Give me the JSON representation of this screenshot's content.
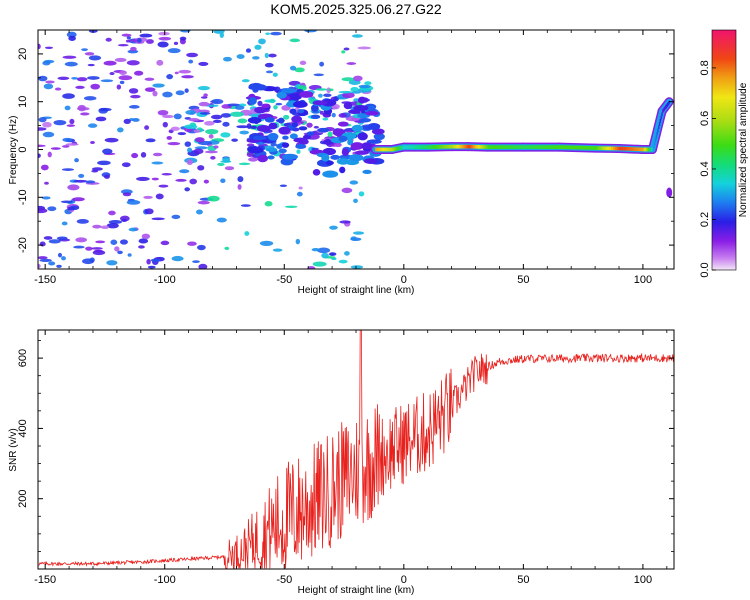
{
  "title": "KOM5.2025.325.06.27.G22",
  "chart_data": [
    {
      "type": "heatmap",
      "name": "spectrogram",
      "xlabel": "Height of straight line (km)",
      "ylabel": "Frequency (Hz)",
      "xlim": [
        -153,
        113
      ],
      "ylim": [
        -25,
        25
      ],
      "xticks": [
        -150,
        -100,
        -50,
        0,
        50,
        100
      ],
      "yticks": [
        -20,
        -10,
        0,
        10,
        20
      ],
      "colorbar": {
        "label": "Normalized spectral amplitude",
        "range": [
          0,
          0.95
        ],
        "ticks": [
          0.0,
          0.2,
          0.4,
          0.6,
          0.8
        ],
        "tick_labels": [
          "0.0",
          "0.2",
          "0.4",
          "0.6",
          "0.8"
        ]
      },
      "dominant_signal": [
        {
          "x": -12,
          "freq": 0.0,
          "amp": 0.75
        },
        {
          "x": -5,
          "freq": 0.0,
          "amp": 0.6
        },
        {
          "x": 0,
          "freq": 0.5,
          "amp": 0.35
        },
        {
          "x": 10,
          "freq": 0.5,
          "amp": 0.45
        },
        {
          "x": 20,
          "freq": 0.6,
          "amp": 0.6
        },
        {
          "x": 27,
          "freq": 0.6,
          "amp": 0.85
        },
        {
          "x": 35,
          "freq": 0.5,
          "amp": 0.5
        },
        {
          "x": 50,
          "freq": 0.5,
          "amp": 0.45
        },
        {
          "x": 65,
          "freq": 0.5,
          "amp": 0.5
        },
        {
          "x": 80,
          "freq": 0.3,
          "amp": 0.5
        },
        {
          "x": 90,
          "freq": 0.2,
          "amp": 0.85
        },
        {
          "x": 100,
          "freq": 0.0,
          "amp": 0.75
        },
        {
          "x": 104,
          "freq": 0.0,
          "amp": 0.3
        },
        {
          "x": 108,
          "freq": 8.0,
          "amp": 0.15
        },
        {
          "x": 111,
          "freq": 10.0,
          "amp": 0.2
        }
      ],
      "scattered_region_x": [
        -153,
        -15
      ],
      "scattered_amp_range": [
        0.05,
        0.35
      ]
    },
    {
      "type": "line",
      "name": "snr",
      "xlabel": "Height of straight line (km)",
      "ylabel": "SNR (v/v)",
      "xlim": [
        -153,
        113
      ],
      "ylim": [
        0,
        680
      ],
      "xticks": [
        -150,
        -100,
        -50,
        0,
        50,
        100
      ],
      "yticks": [
        200,
        400,
        600
      ],
      "color": "#e8211d",
      "trend": [
        {
          "x": -153,
          "snr": 15
        },
        {
          "x": -130,
          "snr": 15
        },
        {
          "x": -110,
          "snr": 20
        },
        {
          "x": -90,
          "snr": 28
        },
        {
          "x": -75,
          "snr": 35
        },
        {
          "x": -68,
          "snr": 50
        },
        {
          "x": -60,
          "snr": 90
        },
        {
          "x": -50,
          "snr": 140
        },
        {
          "x": -40,
          "snr": 180
        },
        {
          "x": -30,
          "snr": 230
        },
        {
          "x": -20,
          "snr": 280
        },
        {
          "x": -10,
          "snr": 320
        },
        {
          "x": 0,
          "snr": 360
        },
        {
          "x": 10,
          "snr": 390
        },
        {
          "x": 20,
          "snr": 460
        },
        {
          "x": 30,
          "snr": 560
        },
        {
          "x": 40,
          "snr": 590
        },
        {
          "x": 50,
          "snr": 598
        },
        {
          "x": 75,
          "snr": 600
        },
        {
          "x": 113,
          "snr": 600
        }
      ],
      "peak": {
        "x": -18,
        "snr": 680
      }
    }
  ]
}
